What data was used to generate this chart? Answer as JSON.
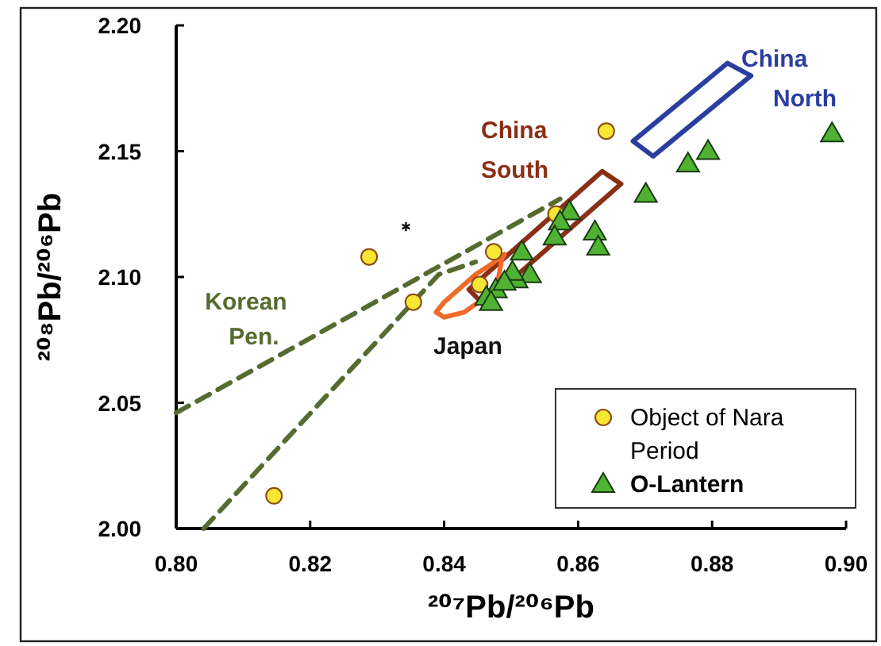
{
  "chart_data": {
    "type": "scatter",
    "xlabel": "²⁰⁷Pb/²⁰⁶Pb",
    "ylabel": "²⁰⁸Pb/²⁰⁶Pb",
    "xlim": [
      0.8,
      0.9
    ],
    "ylim": [
      2.0,
      2.2
    ],
    "xticks": [
      {
        "value": 0.8,
        "label": "0.80"
      },
      {
        "value": 0.82,
        "label": "0.82"
      },
      {
        "value": 0.84,
        "label": "0.84"
      },
      {
        "value": 0.86,
        "label": "0.86"
      },
      {
        "value": 0.88,
        "label": "0.88"
      },
      {
        "value": 0.9,
        "label": "0.90"
      }
    ],
    "yticks": [
      {
        "value": 2.0,
        "label": "2.00"
      },
      {
        "value": 2.05,
        "label": "2.05"
      },
      {
        "value": 2.1,
        "label": "2.10"
      },
      {
        "value": 2.15,
        "label": "2.15"
      },
      {
        "value": 2.2,
        "label": "2.20"
      }
    ],
    "grid": false,
    "legend": "bottom right",
    "series": [
      {
        "type": "line",
        "name": "China North",
        "color": "#2b3ea0",
        "line_style": "solid",
        "x": [
          0.8682,
          0.8823,
          0.8858,
          null,
          0.8682,
          0.8712,
          0.8858
        ],
        "values": [
          2.154,
          2.185,
          2.18,
          null,
          2.154,
          2.148,
          2.18
        ]
      },
      {
        "type": "line",
        "name": "China South",
        "color": "#8b2e16",
        "line_style": "solid",
        "x": [
          0.8437,
          0.8636,
          0.8664,
          null,
          0.8437,
          0.8459,
          0.8664
        ],
        "values": [
          2.095,
          2.142,
          2.137,
          null,
          2.095,
          2.089,
          2.137
        ]
      },
      {
        "type": "line",
        "name": "Japan",
        "color": "#f06a28",
        "line_style": "solid",
        "x": [
          0.8388,
          0.84,
          0.8447,
          0.847,
          0.849,
          null,
          0.8388,
          0.84,
          0.843,
          0.8478,
          0.8486,
          0.849
        ],
        "values": [
          2.086,
          2.09,
          2.101,
          2.105,
          2.109,
          null,
          2.086,
          2.084,
          2.086,
          2.095,
          2.107,
          2.109
        ]
      },
      {
        "type": "line",
        "name": "Korean Pen.",
        "color": "#556b2f",
        "line_style": "dashed",
        "x": [
          0.8,
          0.8573,
          null,
          0.8041,
          0.8392,
          0.8447
        ],
        "values": [
          2.046,
          2.131,
          null,
          2.0,
          2.101,
          2.106
        ]
      },
      {
        "color": "#111111",
        "marker": "cross",
        "x": [
          0.8343
        ],
        "values": [
          2.12
        ]
      },
      {
        "name": "Object of Nara Period",
        "color": "#f7e633",
        "marker": "circle",
        "x": [
          0.8146,
          0.8288,
          0.8354,
          0.8453,
          0.8474,
          0.8567,
          0.8642
        ],
        "values": [
          2.013,
          2.108,
          2.09,
          2.097,
          2.11,
          2.125,
          2.158
        ]
      },
      {
        "name": "O-Lantern",
        "color": "#4fb232",
        "marker": "triangle",
        "x": [
          0.8979,
          0.8794,
          0.8764,
          0.8701,
          0.8587,
          0.8573,
          0.8565,
          0.8625,
          0.863,
          0.8516,
          0.8528,
          0.8508,
          0.8502,
          0.8477,
          0.8463,
          0.847,
          0.849
        ],
        "values": [
          2.157,
          2.15,
          2.145,
          2.133,
          2.126,
          2.122,
          2.116,
          2.118,
          2.112,
          2.11,
          2.101,
          2.099,
          2.102,
          2.095,
          2.092,
          2.09,
          2.098
        ]
      }
    ]
  }
}
